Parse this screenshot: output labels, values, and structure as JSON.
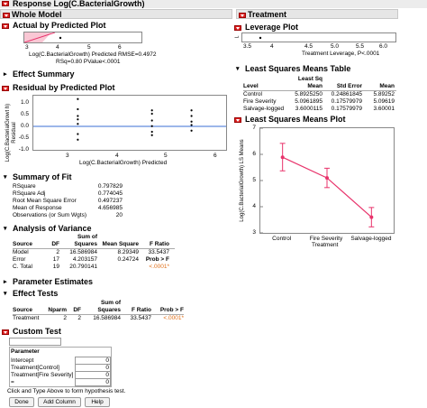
{
  "title": "Response Log(C.BacterialGrowth)",
  "whole_model": {
    "label": "Whole Model",
    "actual_pred": {
      "title": "Actual by Predicted Plot",
      "ticks": [
        "3",
        "4",
        "5",
        "6"
      ],
      "xlabel": "Log(C.BacterialGrowth) Predicted RMSE=0.4972",
      "stats": "RSq=0.80 PValue<.0001"
    },
    "effect_summary": "Effect Summary",
    "residual": {
      "title": "Residual by Predicted Plot",
      "ylabel": "Log(C.BacterialGrowt h) Residual",
      "yticks": [
        "1.0",
        "0.5",
        "0.0",
        "-0.5",
        "-1.0"
      ],
      "xticks": [
        "3",
        "4",
        "5",
        "6"
      ],
      "xlabel": "Log(C.BacterialGrowth) Predicted"
    },
    "summary_of_fit": {
      "title": "Summary of Fit",
      "rows": [
        {
          "label": "RSquare",
          "value": "0.797829"
        },
        {
          "label": "RSquare Adj",
          "value": "0.774045"
        },
        {
          "label": "Root Mean Square Error",
          "value": "0.497237"
        },
        {
          "label": "Mean of Response",
          "value": "4.656985"
        },
        {
          "label": "Observations (or Sum Wgts)",
          "value": "20"
        }
      ]
    },
    "anova": {
      "title": "Analysis of Variance",
      "headers": [
        "Source",
        "DF",
        "Sum of Squares",
        "Mean Square",
        "F Ratio"
      ],
      "rows": [
        [
          "Model",
          "2",
          "16.586984",
          "8.29349",
          "33.5437"
        ],
        [
          "Error",
          "17",
          "4.203157",
          "0.24724",
          "Prob > F"
        ],
        [
          "C. Total",
          "19",
          "20.790141",
          "",
          "<.0001*"
        ]
      ]
    },
    "param_est": "Parameter Estimates",
    "effect_tests": {
      "title": "Effect Tests",
      "headers": [
        "Source",
        "Nparm",
        "DF",
        "Sum of Squares",
        "F Ratio",
        "Prob > F"
      ],
      "row": [
        "Treatment",
        "2",
        "2",
        "16.586984",
        "33.5437",
        "<.0001*"
      ]
    },
    "custom_test": {
      "title": "Custom Test",
      "param_header": "Parameter",
      "params": [
        "Intercept",
        "Treatment[Control]",
        "Treatment[Fire Severity]",
        "="
      ],
      "values": [
        "0",
        "0",
        "0",
        "0"
      ],
      "hint": "Click and Type Above to form hypothesis test.",
      "buttons": [
        "Done",
        "Add Column",
        "Help"
      ]
    }
  },
  "treatment": {
    "label": "Treatment",
    "leverage": {
      "title": "Leverage Plot",
      "xticks": [
        "3.5",
        "4",
        "4.5",
        "5.0",
        "5.5",
        "6.0"
      ],
      "xlabel": "Treatment Leverage, P<.0001",
      "yclip": "L"
    },
    "lsm_table": {
      "title": "Least Squares Means Table",
      "headers": [
        "Level",
        "Least Sq Mean",
        "Std Error",
        "Mean"
      ],
      "rows": [
        [
          "Control",
          "5.8925250",
          "0.24861845",
          "5.89252"
        ],
        [
          "Fire Severity",
          "5.0961895",
          "0.17579979",
          "5.09619"
        ],
        [
          "Salvage-logged",
          "3.6000115",
          "0.17579979",
          "3.60001"
        ]
      ]
    },
    "lsm_plot": {
      "title": "Least Squares Means Plot",
      "ylabel": "Log(C.BacterialGrowth) LS Means",
      "xlabel": "Treatment"
    }
  },
  "chart_data": {
    "type": "line",
    "categories": [
      "Control",
      "Fire Severity",
      "Salvage-logged"
    ],
    "values": [
      5.89,
      5.1,
      3.6
    ],
    "lower": [
      5.37,
      4.73,
      3.23
    ],
    "upper": [
      6.42,
      5.47,
      3.97
    ],
    "ylim": [
      3,
      7
    ],
    "yticks": [
      3,
      4,
      5,
      6,
      7
    ],
    "ylabel": "Log(C.BacterialGrowth) LS Means",
    "xlabel": "Treatment",
    "color": "#e8336b"
  },
  "residual_points": [
    {
      "x": 3.6,
      "y": 1.05
    },
    {
      "x": 3.6,
      "y": 0.6
    },
    {
      "x": 3.6,
      "y": 0.3
    },
    {
      "x": 3.6,
      "y": -0.05
    },
    {
      "x": 3.6,
      "y": -0.5
    },
    {
      "x": 3.6,
      "y": -0.75
    },
    {
      "x": 3.6,
      "y": 0.15
    },
    {
      "x": 5.1,
      "y": 0.55
    },
    {
      "x": 5.1,
      "y": 0.4
    },
    {
      "x": 5.1,
      "y": 0.1
    },
    {
      "x": 5.1,
      "y": -0.15
    },
    {
      "x": 5.1,
      "y": -0.4
    },
    {
      "x": 5.1,
      "y": -0.55
    },
    {
      "x": 5.9,
      "y": 0.55
    },
    {
      "x": 5.9,
      "y": 0.3
    },
    {
      "x": 5.9,
      "y": -0.1
    },
    {
      "x": 5.9,
      "y": -0.35
    },
    {
      "x": 5.9,
      "y": 0.05
    }
  ],
  "colors": {
    "accent": "#e8336b",
    "header_bg": "#e6e6e6",
    "ref_line": "#3b6fd4",
    "prob_text": "#e0701a"
  }
}
